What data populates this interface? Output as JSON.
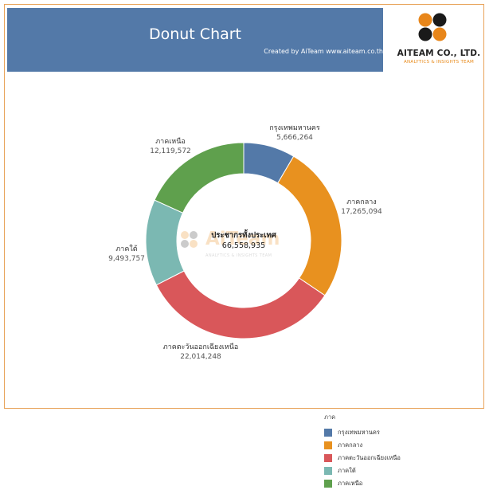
{
  "header": {
    "title": "Donut Chart",
    "subtitle": "Created by AiTeam  www.aiteam.co.th"
  },
  "logo": {
    "brand": "AITEAM CO., LTD.",
    "tagline": "ANALYTICS & INSIGHTS TEAM",
    "colors": [
      "#e8861a",
      "#1a1a1a"
    ]
  },
  "watermark": {
    "text": "AiTeam",
    "tagline": "ANALYTICS & INSIGHTS TEAM"
  },
  "chart_data": {
    "type": "pie",
    "donut": true,
    "center_label": "ประชากรทั้งประเทศ",
    "center_value": "66,558,935",
    "legend_title": "ภาค",
    "legend_position": "bottom-right",
    "slices": [
      {
        "label": "กรุงเทพมหานคร",
        "value": 5666264,
        "value_text": "5,666,264",
        "color": "#5379a8"
      },
      {
        "label": "ภาคกลาง",
        "value": 17265094,
        "value_text": "17,265,094",
        "color": "#e8911f"
      },
      {
        "label": "ภาคตะวันออกเฉียงเหนือ",
        "value": 22014248,
        "value_text": "22,014,248",
        "color": "#d9575a"
      },
      {
        "label": "ภาคใต้",
        "value": 9493757,
        "value_text": "9,493,757",
        "color": "#7bb8b2"
      },
      {
        "label": "ภาคเหนือ",
        "value": 12119572,
        "value_text": "12,119,572",
        "color": "#5fa04d"
      }
    ]
  }
}
